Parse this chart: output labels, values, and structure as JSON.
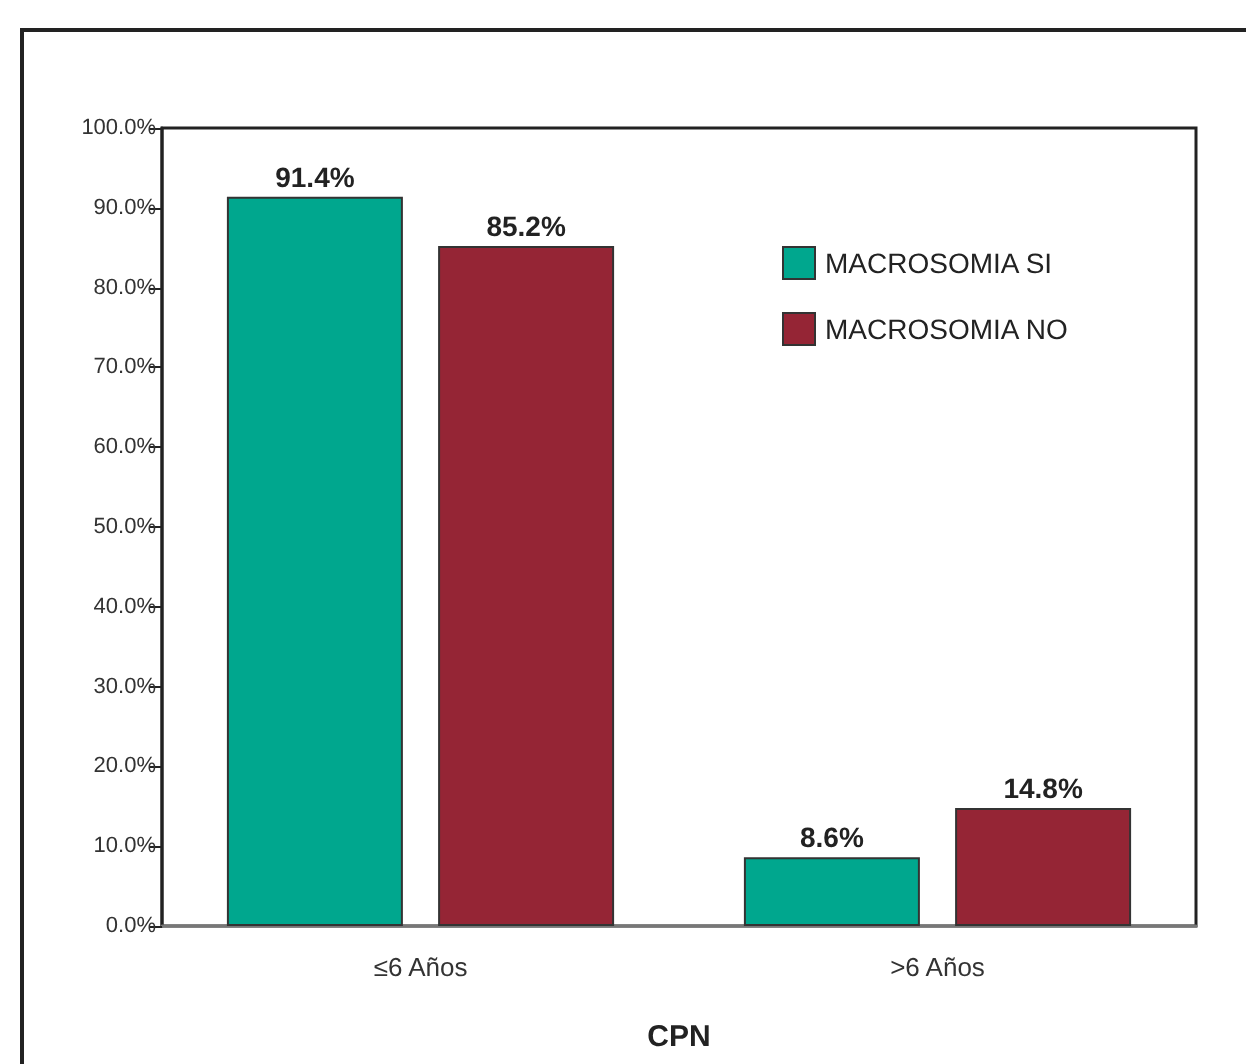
{
  "chart_data": {
    "type": "bar",
    "xlabel": "CPN",
    "categories": [
      "≤6 Años",
      ">6 Años"
    ],
    "series": [
      {
        "name": "MACROSOMIA SI",
        "color": "#00a78e",
        "values": [
          91.4,
          8.6
        ],
        "value_labels": [
          "91.4%",
          "8.6%"
        ]
      },
      {
        "name": "MACROSOMIA NO",
        "color": "#952535",
        "values": [
          85.2,
          14.8
        ],
        "value_labels": [
          "85.2%",
          "14.8%"
        ]
      }
    ],
    "ylim": [
      0,
      100
    ],
    "yticks": [
      {
        "value": 0,
        "label": "0.0%"
      },
      {
        "value": 10,
        "label": "10.0%"
      },
      {
        "value": 20,
        "label": "20.0%"
      },
      {
        "value": 30,
        "label": "30.0%"
      },
      {
        "value": 40,
        "label": "40.0%"
      },
      {
        "value": 50,
        "label": "50.0%"
      },
      {
        "value": 60,
        "label": "60.0%"
      },
      {
        "value": 70,
        "label": "70.0%"
      },
      {
        "value": 80,
        "label": "80.0%"
      },
      {
        "value": 90,
        "label": "90.0%"
      },
      {
        "value": 100,
        "label": "100.0%"
      }
    ],
    "grid": false,
    "legend": "top right"
  }
}
